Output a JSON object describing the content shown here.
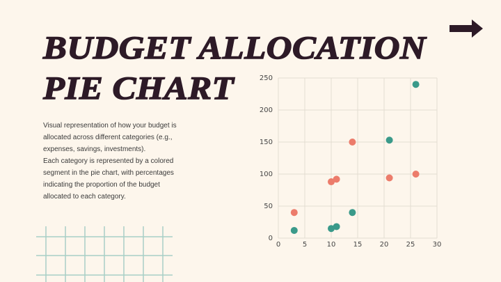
{
  "slide": {
    "title_lines": [
      "BUDGET ALLOCATION",
      "PIE CHART"
    ],
    "paragraphs": [
      "Visual representation of how your budget is allocated across different categories (e.g., expenses, savings, investments).",
      "Each category is represented by a colored segment in the pie chart, with percentages indicating the proportion of the budget allocated to each category."
    ]
  },
  "chart_data": {
    "type": "scatter",
    "series": [
      {
        "color": "#ec7c6b",
        "x": [
          3,
          10,
          11,
          14,
          21,
          26
        ],
        "values": [
          40,
          88,
          92,
          150,
          94,
          100
        ]
      },
      {
        "color": "#3a9a8a",
        "x": [
          3,
          10,
          11,
          14,
          21,
          26
        ],
        "values": [
          12,
          15,
          18,
          40,
          153,
          240
        ]
      }
    ],
    "xlim": [
      0,
      30
    ],
    "xticks": [
      0,
      5,
      10,
      15,
      20,
      25,
      30
    ],
    "ylim": [
      0,
      250
    ],
    "yticks": [
      0,
      50,
      100,
      150,
      200,
      250
    ],
    "grid": true
  }
}
